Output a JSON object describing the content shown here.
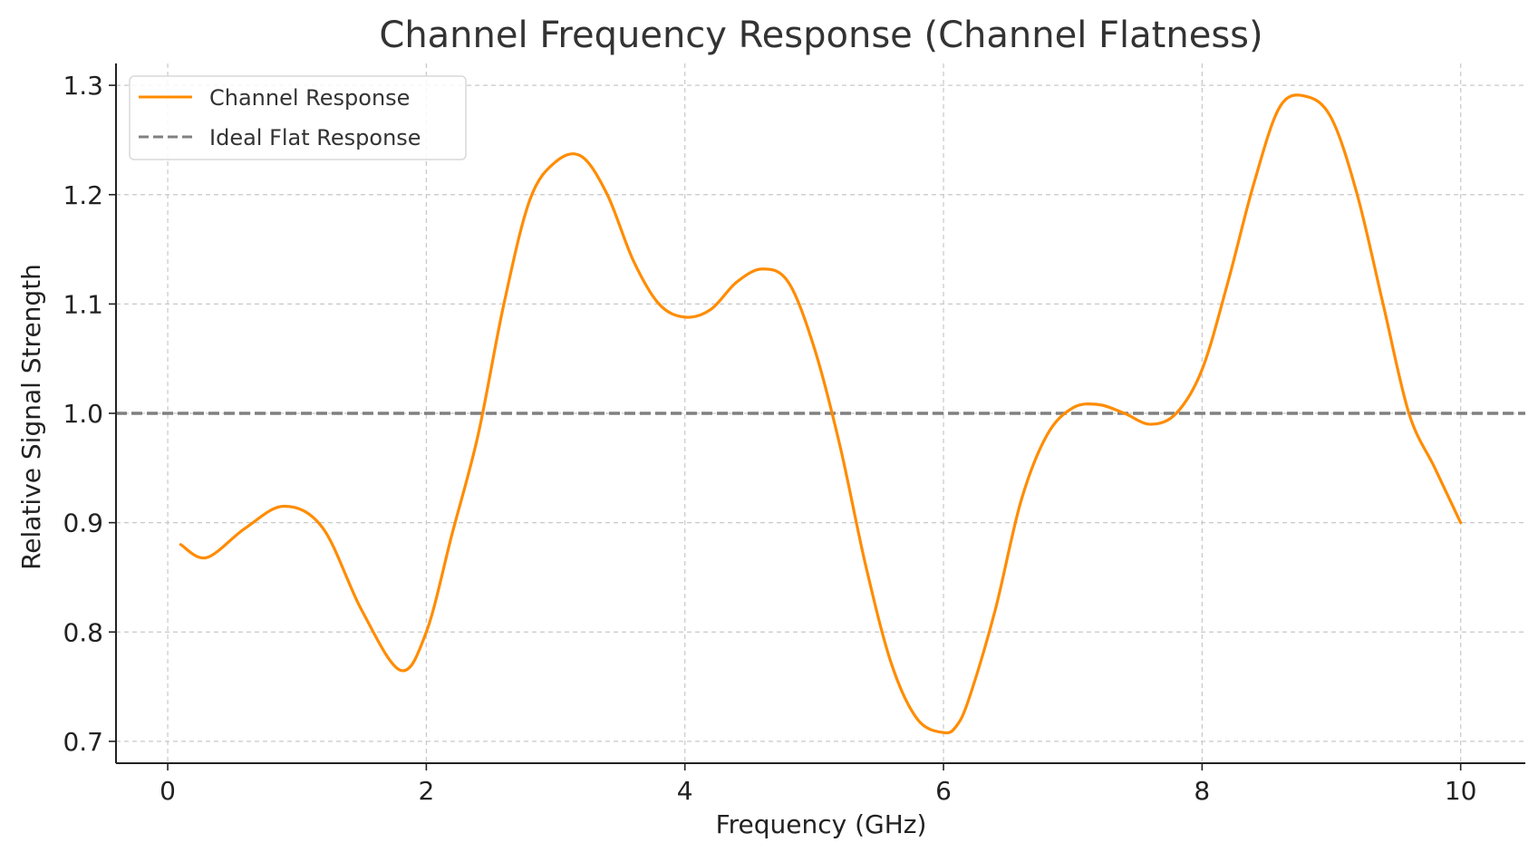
{
  "chart_data": {
    "type": "line",
    "title": "Channel Frequency Response (Channel Flatness)",
    "xlabel": "Frequency (GHz)",
    "ylabel": "Relative Signal Strength",
    "xlim": [
      -0.4,
      10.5
    ],
    "ylim": [
      0.68,
      1.32
    ],
    "xticks": [
      0,
      2,
      4,
      6,
      8,
      10
    ],
    "xtick_labels": [
      "0",
      "2",
      "4",
      "6",
      "8",
      "10"
    ],
    "yticks": [
      0.7,
      0.8,
      0.9,
      1.0,
      1.1,
      1.2,
      1.3
    ],
    "ytick_labels": [
      "0.7",
      "0.8",
      "0.9",
      "1.0",
      "1.1",
      "1.2",
      "1.3"
    ],
    "grid": true,
    "legend_position": "top-left",
    "series": [
      {
        "name": "Channel Response",
        "color": "#ff8c00",
        "style": "solid",
        "x": [
          0.1,
          0.3,
          0.6,
          0.9,
          1.2,
          1.5,
          1.8,
          2.0,
          2.2,
          2.4,
          2.6,
          2.8,
          3.0,
          3.2,
          3.4,
          3.6,
          3.8,
          4.0,
          4.2,
          4.4,
          4.6,
          4.8,
          5.0,
          5.2,
          5.4,
          5.6,
          5.8,
          6.0,
          6.1,
          6.2,
          6.4,
          6.6,
          6.8,
          7.0,
          7.2,
          7.4,
          7.6,
          7.8,
          8.0,
          8.2,
          8.4,
          8.6,
          8.8,
          9.0,
          9.2,
          9.4,
          9.6,
          9.8,
          10.0
        ],
        "y": [
          0.88,
          0.868,
          0.895,
          0.915,
          0.895,
          0.82,
          0.765,
          0.8,
          0.89,
          0.98,
          1.1,
          1.195,
          1.23,
          1.235,
          1.2,
          1.14,
          1.1,
          1.088,
          1.095,
          1.12,
          1.132,
          1.12,
          1.06,
          0.97,
          0.86,
          0.77,
          0.72,
          0.708,
          0.714,
          0.74,
          0.82,
          0.92,
          0.98,
          1.005,
          1.008,
          1.0,
          0.99,
          1.0,
          1.04,
          1.12,
          1.21,
          1.28,
          1.29,
          1.27,
          1.2,
          1.1,
          1.0,
          0.95,
          0.9
        ]
      },
      {
        "name": "Ideal Flat Response",
        "color": "#808080",
        "style": "dashed",
        "x": [
          -0.4,
          10.5
        ],
        "y": [
          1.0,
          1.0
        ]
      }
    ]
  }
}
